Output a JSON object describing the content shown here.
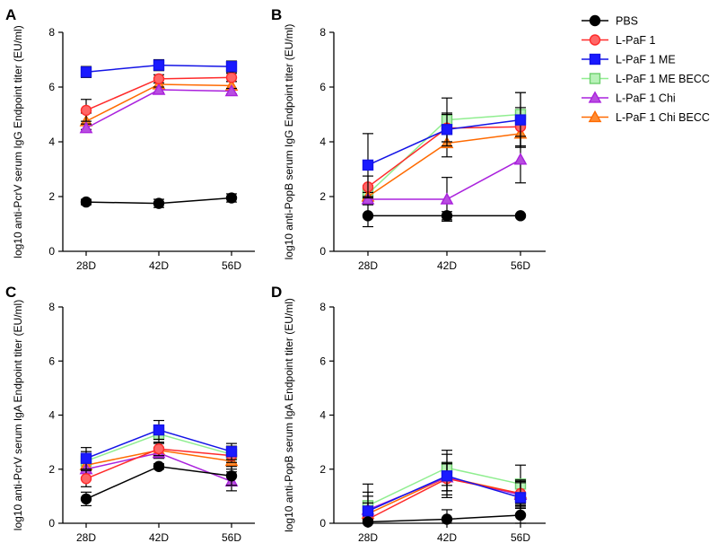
{
  "figure": {
    "x_categories": [
      "28D",
      "42D",
      "56D"
    ],
    "y_ticks": [
      "0",
      "2",
      "4",
      "6",
      "8"
    ]
  },
  "legend": [
    {
      "key": "pbs",
      "label": "PBS",
      "color": "#000000",
      "fill": "#000000",
      "marker": "circle"
    },
    {
      "key": "lpaf1",
      "label": "L-PaF 1",
      "color": "#ff2a2a",
      "fill": "#ff6666",
      "marker": "circle"
    },
    {
      "key": "me",
      "label": "L-PaF 1 ME",
      "color": "#1414e6",
      "fill": "#1a1aff",
      "marker": "square"
    },
    {
      "key": "mebecc",
      "label": "L-PaF 1 ME BECC",
      "color": "#90ee90",
      "fill": "#b8f2b8",
      "marker": "square"
    },
    {
      "key": "chi",
      "label": "L-PaF 1 Chi",
      "color": "#aa22dd",
      "fill": "#b84ee0",
      "marker": "triangle"
    },
    {
      "key": "chibecc",
      "label": "L-PaF 1 Chi BECC",
      "color": "#ff6a00",
      "fill": "#ff8c33",
      "marker": "triangle"
    }
  ],
  "chart_data": [
    {
      "panel": "A",
      "type": "line",
      "title": "",
      "xlabel": "",
      "ylabel": "log10 anti-PcrV serum IgG Endpoint titer (EU/ml)",
      "categories": [
        "28D",
        "42D",
        "56D"
      ],
      "ylim": [
        0,
        8
      ],
      "series": [
        {
          "name": "PBS",
          "values": [
            1.8,
            1.75,
            1.95
          ],
          "errors": [
            0.1,
            0.15,
            0.15
          ]
        },
        {
          "name": "L-PaF 1",
          "values": [
            5.15,
            6.3,
            6.35
          ],
          "errors": [
            0.4,
            0.15,
            0.15
          ]
        },
        {
          "name": "L-PaF 1 ME",
          "values": [
            6.55,
            6.8,
            6.75
          ],
          "errors": [
            0.2,
            0.2,
            0.2
          ]
        },
        {
          "name": "L-PaF 1 ME BECC",
          "values": [
            null,
            null,
            null
          ],
          "errors": [
            null,
            null,
            null
          ]
        },
        {
          "name": "L-PaF 1 Chi",
          "values": [
            4.5,
            5.9,
            5.85
          ],
          "errors": [
            0.15,
            0.1,
            0.1
          ]
        },
        {
          "name": "L-PaF 1 Chi BECC",
          "values": [
            4.75,
            6.1,
            6.05
          ],
          "errors": [
            0.3,
            0.15,
            0.15
          ]
        }
      ]
    },
    {
      "panel": "B",
      "type": "line",
      "title": "",
      "xlabel": "",
      "ylabel": "log10 anti-PopB serum IgG Endpoint titer (EU/ml)",
      "categories": [
        "28D",
        "42D",
        "56D"
      ],
      "ylim": [
        0,
        8
      ],
      "series": [
        {
          "name": "PBS",
          "values": [
            1.3,
            1.3,
            1.3
          ],
          "errors": [
            0.4,
            0.15,
            0.05
          ]
        },
        {
          "name": "L-PaF 1",
          "values": [
            2.35,
            4.5,
            4.55
          ],
          "errors": [
            0.4,
            0.5,
            0.7
          ]
        },
        {
          "name": "L-PaF 1 ME",
          "values": [
            3.15,
            4.45,
            4.8
          ],
          "errors": [
            1.15,
            0.6,
            1.0
          ]
        },
        {
          "name": "L-PaF 1 ME BECC",
          "values": [
            2.1,
            4.8,
            5.0
          ],
          "errors": [
            0.3,
            0.8,
            0.8
          ]
        },
        {
          "name": "L-PaF 1 Chi",
          "values": [
            1.9,
            1.9,
            3.35
          ],
          "errors": [
            0.1,
            0.8,
            0.85
          ]
        },
        {
          "name": "L-PaF 1 Chi BECC",
          "values": [
            2.0,
            3.95,
            4.3
          ],
          "errors": [
            0.15,
            0.5,
            0.5
          ]
        }
      ]
    },
    {
      "panel": "C",
      "type": "line",
      "title": "",
      "xlabel": "",
      "ylabel": "log10 anti-PcrV serum IgA Endpoint titer (EU/ml)",
      "categories": [
        "28D",
        "42D",
        "56D"
      ],
      "ylim": [
        0,
        8
      ],
      "series": [
        {
          "name": "PBS",
          "values": [
            0.9,
            2.1,
            1.75
          ],
          "errors": [
            0.25,
            0.1,
            0.35
          ]
        },
        {
          "name": "L-PaF 1",
          "values": [
            1.65,
            2.75,
            2.5
          ],
          "errors": [
            0.3,
            0.25,
            0.25
          ]
        },
        {
          "name": "L-PaF 1 ME",
          "values": [
            2.4,
            3.45,
            2.65
          ],
          "errors": [
            0.4,
            0.35,
            0.3
          ]
        },
        {
          "name": "L-PaF 1 ME BECC",
          "values": [
            2.3,
            3.3,
            2.55
          ],
          "errors": [
            0.35,
            0.3,
            0.3
          ]
        },
        {
          "name": "L-PaF 1 Chi",
          "values": [
            2.0,
            2.6,
            1.55
          ],
          "errors": [
            0.3,
            0.2,
            0.35
          ]
        },
        {
          "name": "L-PaF 1 Chi BECC",
          "values": [
            2.15,
            2.7,
            2.3
          ],
          "errors": [
            0.3,
            0.25,
            0.3
          ]
        }
      ]
    },
    {
      "panel": "D",
      "type": "line",
      "title": "",
      "xlabel": "",
      "ylabel": "log10 anti-PopB serum IgA Endpoint titer (EU/ml)",
      "categories": [
        "28D",
        "42D",
        "56D"
      ],
      "ylim": [
        0,
        8
      ],
      "series": [
        {
          "name": "PBS",
          "values": [
            0.05,
            0.15,
            0.3
          ],
          "errors": [
            0.1,
            0.35,
            0.35
          ]
        },
        {
          "name": "L-PaF 1",
          "values": [
            0.15,
            1.65,
            1.1
          ],
          "errors": [
            0.3,
            0.6,
            0.5
          ]
        },
        {
          "name": "L-PaF 1 ME",
          "values": [
            0.45,
            1.75,
            0.95
          ],
          "errors": [
            0.7,
            0.8,
            0.6
          ]
        },
        {
          "name": "L-PaF 1 ME BECC",
          "values": [
            0.65,
            2.05,
            1.45
          ],
          "errors": [
            0.8,
            0.65,
            0.7
          ]
        },
        {
          "name": "L-PaF 1 Chi",
          "values": [
            0.5,
            1.7,
            1.05
          ],
          "errors": [
            0.5,
            0.5,
            0.5
          ]
        },
        {
          "name": "L-PaF 1 Chi BECC",
          "values": [
            0.35,
            1.7,
            1.1
          ],
          "errors": [
            0.4,
            0.5,
            0.4
          ]
        }
      ]
    }
  ]
}
